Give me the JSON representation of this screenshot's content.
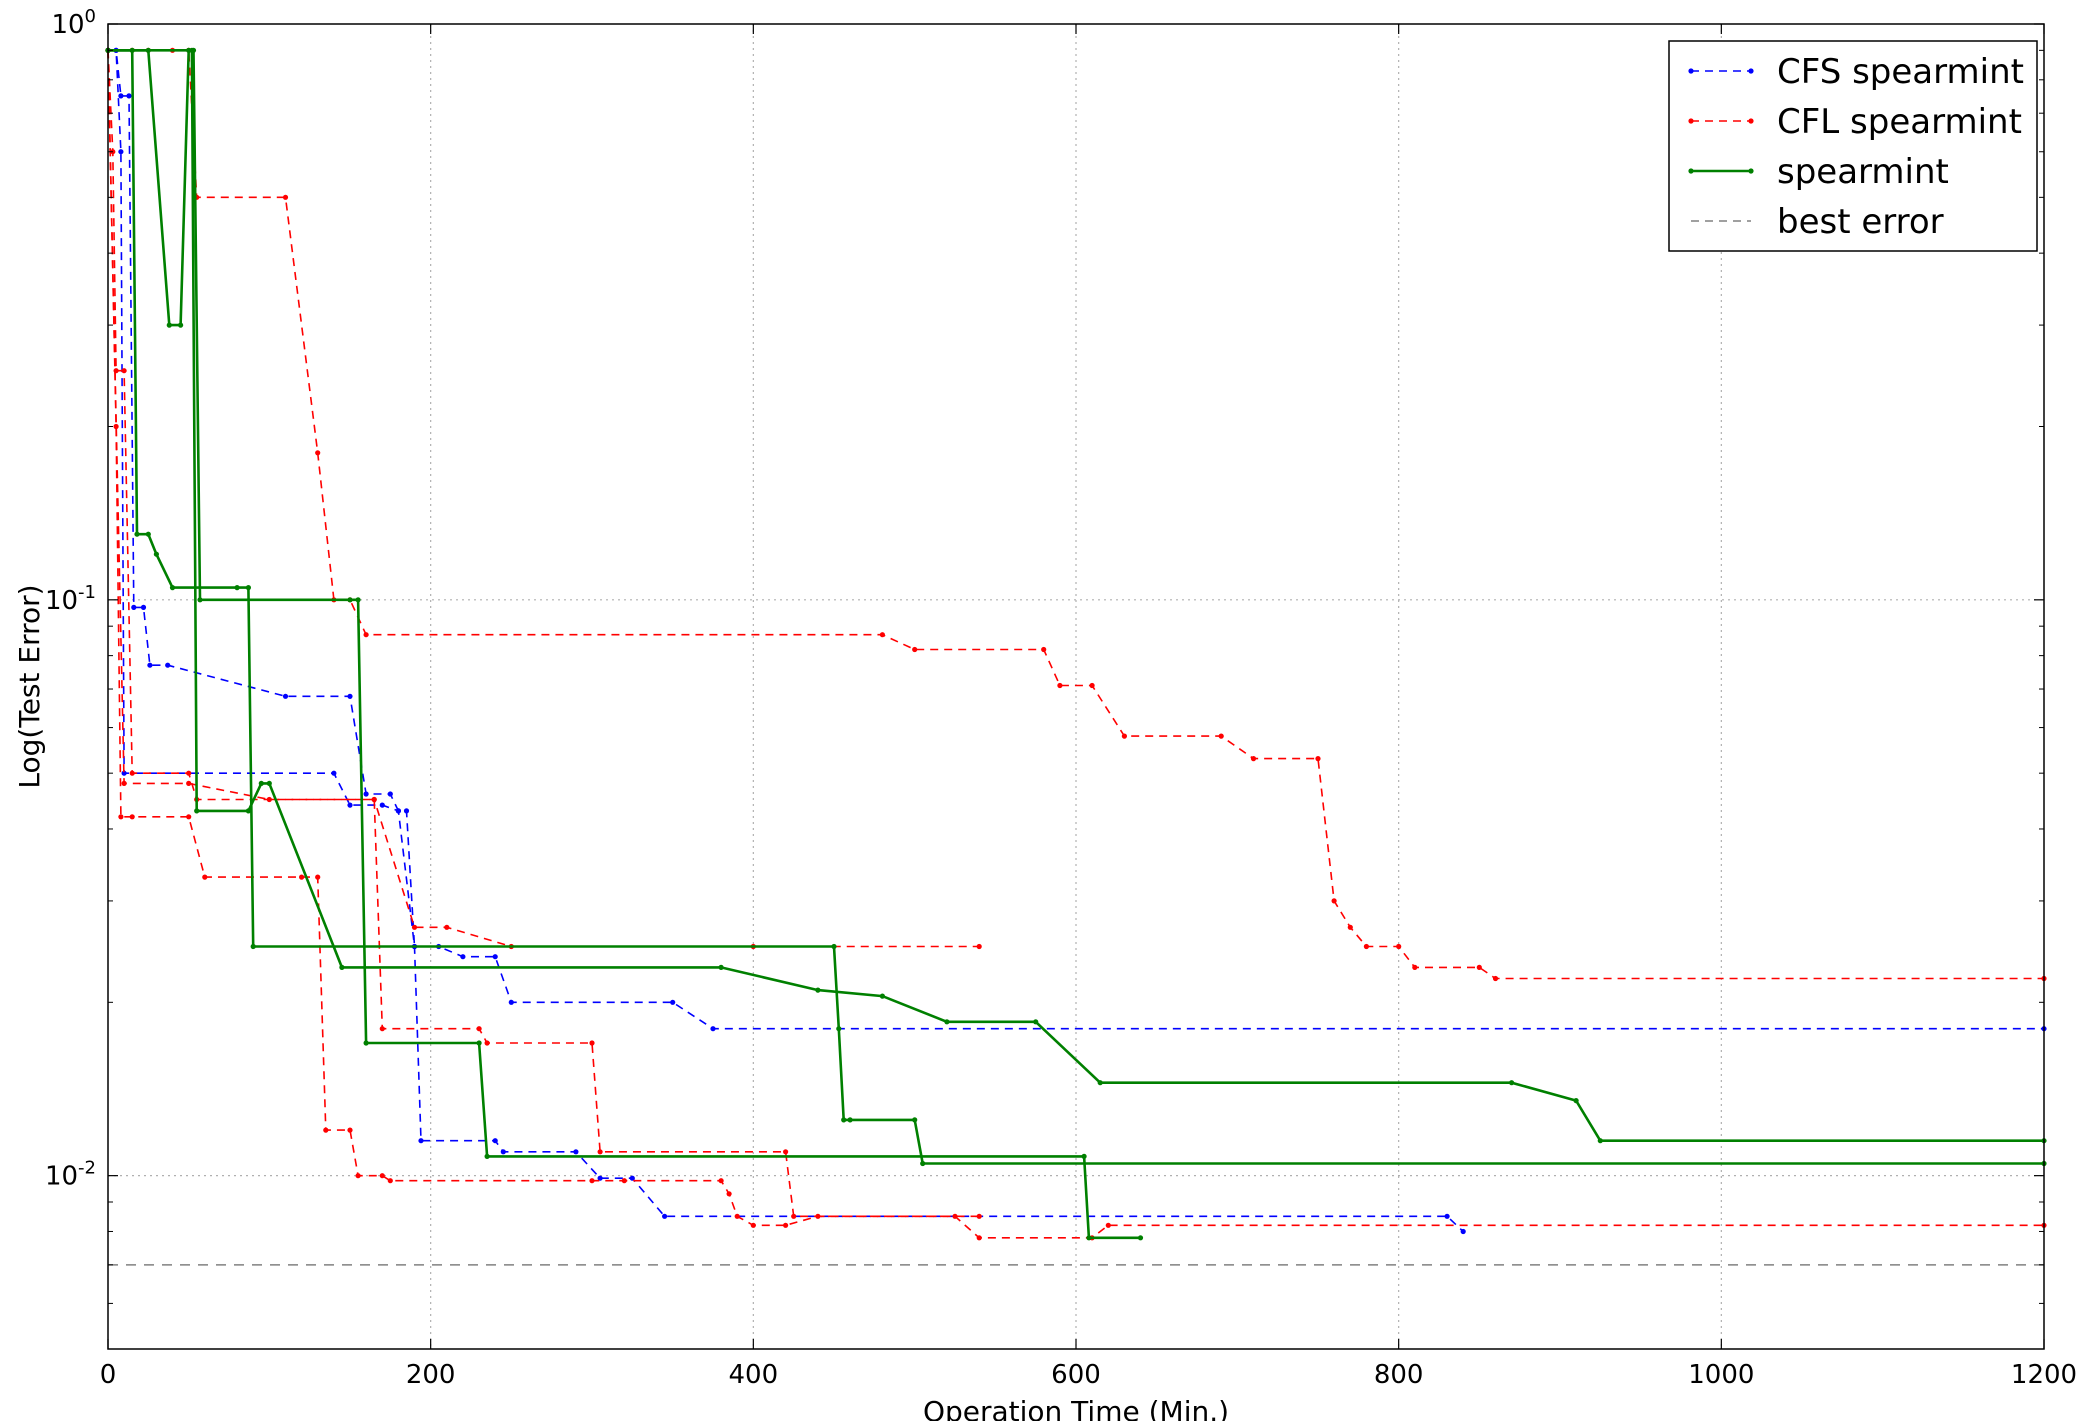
{
  "chart_data": {
    "type": "line",
    "title": "",
    "xlabel": "Operation Time (Min.)",
    "ylabel": "Log(Test Error)",
    "xscale": "linear",
    "yscale": "log",
    "xlim": [
      0,
      1200
    ],
    "ylim": [
      0.005,
      1.0
    ],
    "xticks": [
      0,
      200,
      400,
      600,
      800,
      1000,
      1200
    ],
    "xtick_labels": [
      "0",
      "200",
      "400",
      "600",
      "800",
      "1000",
      "1200"
    ],
    "yticks": [
      0.01,
      0.1,
      1.0
    ],
    "ytick_labels": [
      {
        "base": "10",
        "exp": "-2"
      },
      {
        "base": "10",
        "exp": "-1"
      },
      {
        "base": "10",
        "exp": "0"
      }
    ],
    "grid": true,
    "legend_position": "top-right",
    "series": [
      {
        "name": "CFS spearmint",
        "color": "#0000ff",
        "style": "dashed-markers",
        "runs": [
          [
            [
              0,
              0.9
            ],
            [
              5,
              0.9
            ],
            [
              8,
              0.75
            ],
            [
              13,
              0.75
            ],
            [
              16,
              0.097
            ],
            [
              22,
              0.097
            ],
            [
              26,
              0.077
            ],
            [
              37,
              0.077
            ],
            [
              110,
              0.068
            ],
            [
              150,
              0.068
            ],
            [
              160,
              0.046
            ],
            [
              175,
              0.046
            ],
            [
              180,
              0.043
            ],
            [
              185,
              0.043
            ],
            [
              190,
              0.025
            ],
            [
              205,
              0.025
            ],
            [
              220,
              0.024
            ],
            [
              240,
              0.024
            ],
            [
              250,
              0.02
            ],
            [
              350,
              0.02
            ],
            [
              375,
              0.018
            ],
            [
              1200,
              0.018
            ]
          ],
          [
            [
              0,
              0.9
            ],
            [
              5,
              0.9
            ],
            [
              8,
              0.6
            ],
            [
              10,
              0.05
            ],
            [
              140,
              0.05
            ],
            [
              150,
              0.044
            ],
            [
              170,
              0.044
            ],
            [
              180,
              0.043
            ],
            [
              190,
              0.025
            ],
            [
              194,
              0.0115
            ],
            [
              240,
              0.0115
            ],
            [
              245,
              0.011
            ],
            [
              290,
              0.011
            ],
            [
              305,
              0.0099
            ],
            [
              325,
              0.0099
            ],
            [
              345,
              0.0085
            ],
            [
              830,
              0.0085
            ],
            [
              840,
              0.008
            ]
          ]
        ]
      },
      {
        "name": "CFL spearmint",
        "color": "#ff0000",
        "style": "dashed-markers",
        "runs": [
          [
            [
              0,
              0.9
            ],
            [
              15,
              0.9
            ],
            [
              25,
              0.9
            ],
            [
              40,
              0.9
            ],
            [
              50,
              0.9
            ],
            [
              55,
              0.5
            ],
            [
              110,
              0.5
            ],
            [
              130,
              0.18
            ],
            [
              140,
              0.1
            ],
            [
              150,
              0.1
            ],
            [
              160,
              0.087
            ],
            [
              480,
              0.087
            ],
            [
              500,
              0.082
            ],
            [
              580,
              0.082
            ],
            [
              590,
              0.071
            ],
            [
              610,
              0.071
            ],
            [
              630,
              0.058
            ],
            [
              690,
              0.058
            ],
            [
              710,
              0.053
            ],
            [
              750,
              0.053
            ],
            [
              760,
              0.03
            ],
            [
              770,
              0.027
            ],
            [
              780,
              0.025
            ],
            [
              800,
              0.025
            ],
            [
              810,
              0.023
            ],
            [
              850,
              0.023
            ],
            [
              860,
              0.022
            ],
            [
              1200,
              0.022
            ]
          ],
          [
            [
              0,
              0.9
            ],
            [
              3,
              0.6
            ],
            [
              5,
              0.25
            ],
            [
              10,
              0.25
            ],
            [
              15,
              0.05
            ],
            [
              50,
              0.05
            ],
            [
              55,
              0.045
            ],
            [
              165,
              0.045
            ],
            [
              170,
              0.018
            ],
            [
              230,
              0.018
            ],
            [
              235,
              0.017
            ],
            [
              300,
              0.017
            ],
            [
              305,
              0.011
            ],
            [
              420,
              0.011
            ],
            [
              425,
              0.0085
            ],
            [
              525,
              0.0085
            ],
            [
              540,
              0.0078
            ],
            [
              610,
              0.0078
            ],
            [
              620,
              0.0082
            ],
            [
              1200,
              0.0082
            ]
          ],
          [
            [
              0,
              0.9
            ],
            [
              5,
              0.2
            ],
            [
              8,
              0.042
            ],
            [
              15,
              0.042
            ],
            [
              50,
              0.042
            ],
            [
              60,
              0.033
            ],
            [
              120,
              0.033
            ],
            [
              130,
              0.033
            ],
            [
              135,
              0.012
            ],
            [
              150,
              0.012
            ],
            [
              155,
              0.01
            ],
            [
              170,
              0.01
            ],
            [
              175,
              0.0098
            ],
            [
              300,
              0.0098
            ],
            [
              320,
              0.0098
            ],
            [
              380,
              0.0098
            ],
            [
              385,
              0.0093
            ],
            [
              390,
              0.0085
            ],
            [
              400,
              0.0082
            ],
            [
              420,
              0.0082
            ],
            [
              440,
              0.0085
            ],
            [
              540,
              0.0085
            ]
          ],
          [
            [
              0,
              0.9
            ],
            [
              10,
              0.048
            ],
            [
              50,
              0.048
            ],
            [
              100,
              0.045
            ],
            [
              165,
              0.045
            ],
            [
              190,
              0.027
            ],
            [
              210,
              0.027
            ],
            [
              250,
              0.025
            ],
            [
              400,
              0.025
            ],
            [
              540,
              0.025
            ]
          ]
        ]
      },
      {
        "name": "spearmint",
        "color": "#008000",
        "style": "solid-markers",
        "runs": [
          [
            [
              0,
              0.9
            ],
            [
              15,
              0.9
            ],
            [
              18,
              0.13
            ],
            [
              25,
              0.13
            ],
            [
              30,
              0.12
            ],
            [
              40,
              0.105
            ],
            [
              80,
              0.105
            ],
            [
              87,
              0.105
            ],
            [
              90,
              0.025
            ],
            [
              450,
              0.025
            ],
            [
              453,
              0.018
            ],
            [
              456,
              0.0125
            ],
            [
              460,
              0.0125
            ],
            [
              500,
              0.0125
            ],
            [
              505,
              0.0105
            ],
            [
              1200,
              0.0105
            ]
          ],
          [
            [
              0,
              0.9
            ],
            [
              25,
              0.9
            ],
            [
              38,
              0.3
            ],
            [
              45,
              0.3
            ],
            [
              50,
              0.9
            ],
            [
              53,
              0.9
            ],
            [
              57,
              0.1
            ],
            [
              150,
              0.1
            ],
            [
              155,
              0.1
            ],
            [
              160,
              0.017
            ],
            [
              230,
              0.017
            ],
            [
              235,
              0.0108
            ],
            [
              605,
              0.0108
            ],
            [
              608,
              0.0078
            ],
            [
              640,
              0.0078
            ]
          ],
          [
            [
              0,
              0.9
            ],
            [
              52,
              0.9
            ],
            [
              55,
              0.043
            ],
            [
              87,
              0.043
            ],
            [
              95,
              0.048
            ],
            [
              100,
              0.048
            ],
            [
              145,
              0.023
            ],
            [
              380,
              0.023
            ],
            [
              440,
              0.021
            ],
            [
              480,
              0.0205
            ],
            [
              520,
              0.0185
            ],
            [
              575,
              0.0185
            ],
            [
              615,
              0.0145
            ],
            [
              870,
              0.0145
            ],
            [
              910,
              0.0135
            ],
            [
              925,
              0.0115
            ],
            [
              1200,
              0.0115
            ]
          ]
        ]
      },
      {
        "name": "best error",
        "color": "#808080",
        "style": "dashed",
        "value": 0.007
      }
    ]
  }
}
